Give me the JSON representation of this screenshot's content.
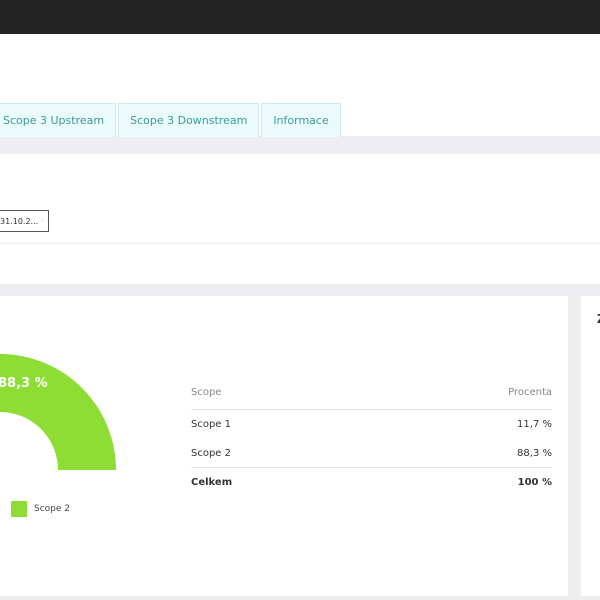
{
  "tabs": [
    {
      "label": "Scope 3 Upstream"
    },
    {
      "label": "Scope 3 Downstream"
    },
    {
      "label": "Informace"
    }
  ],
  "filter": {
    "date_value": "31.10.2...",
    "date_icon": "calendar-icon"
  },
  "chart": {
    "donut_label": "88,3 %",
    "legend_label": "Scope 2",
    "colors": {
      "scope2": "#8ddd35"
    }
  },
  "table": {
    "header": {
      "scope": "Scope",
      "percent": "Procenta"
    },
    "rows": [
      {
        "scope": "Scope 1",
        "percent": "11,7 %"
      },
      {
        "scope": "Scope 2",
        "percent": "88,3 %"
      }
    ],
    "total": {
      "scope": "Celkem",
      "percent": "100 %"
    }
  },
  "chart_data": {
    "type": "pie",
    "categories": [
      "Scope 1",
      "Scope 2"
    ],
    "values": [
      11.7,
      88.3
    ],
    "unit": "%",
    "legend": [
      "Scope 2"
    ]
  }
}
